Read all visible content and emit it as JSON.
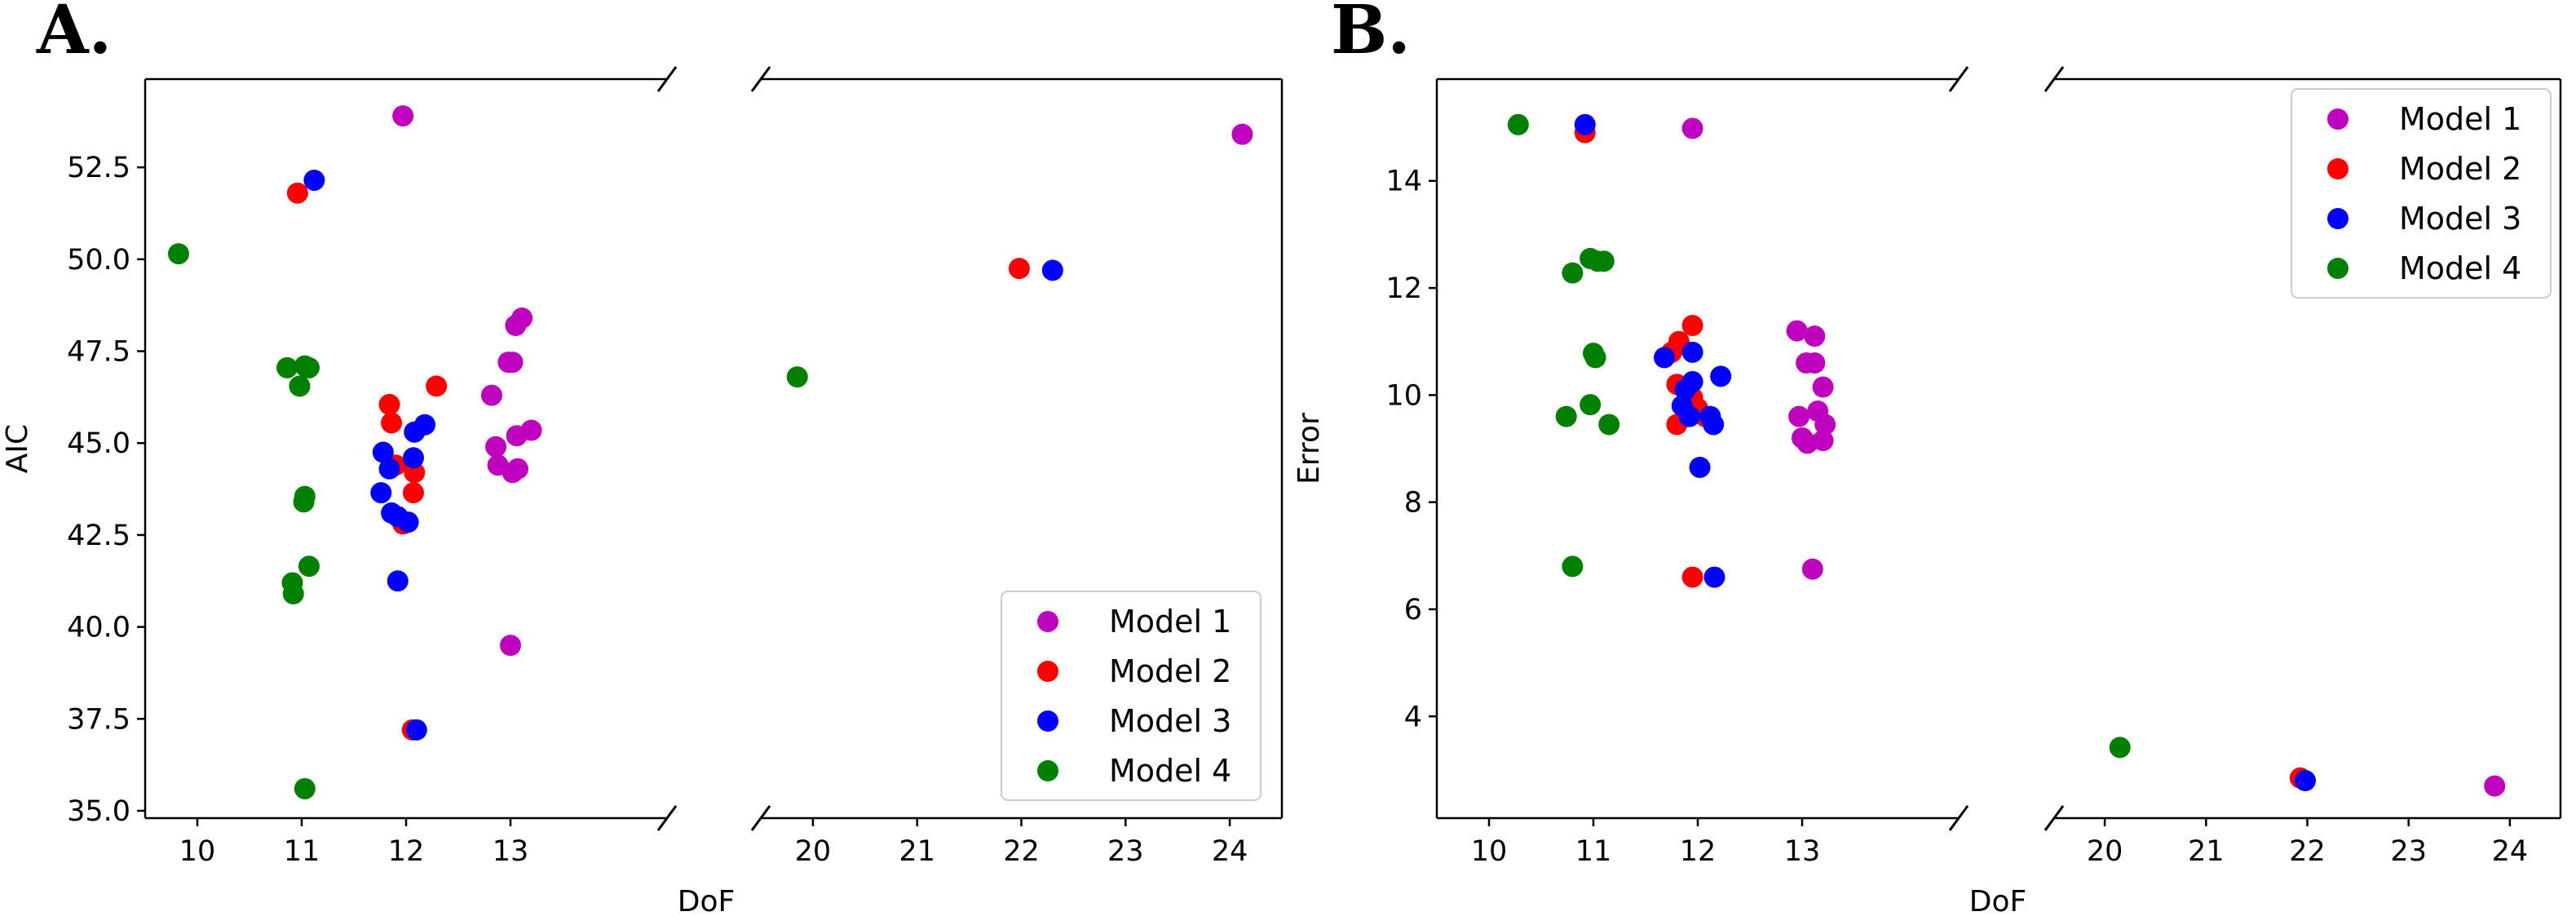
{
  "chart_data": [
    {
      "type": "scatter",
      "panel_label": "A.",
      "xlabel": "DoF",
      "ylabel": "AIC",
      "broken_x_axis": true,
      "x_segments": [
        [
          9.5,
          14.5
        ],
        [
          19.5,
          24.5
        ]
      ],
      "ylim": [
        34.8,
        54.9
      ],
      "xticks_left": [
        10,
        11,
        12,
        13
      ],
      "xticks_right": [
        20,
        21,
        22,
        23,
        24
      ],
      "yticks": [
        35.0,
        37.5,
        40.0,
        42.5,
        45.0,
        47.5,
        50.0,
        52.5
      ],
      "ytick_labels": [
        "35.0",
        "37.5",
        "40.0",
        "42.5",
        "45.0",
        "47.5",
        "50.0",
        "52.5"
      ],
      "legend_position": "bottom-right",
      "series": [
        {
          "name": "Model 1",
          "color": "#bf00bf",
          "points": [
            [
              11.97,
              53.9
            ],
            [
              12.82,
              46.3
            ],
            [
              12.86,
              44.9
            ],
            [
              12.88,
              44.4
            ],
            [
              12.98,
              47.2
            ],
            [
              13.02,
              47.2
            ],
            [
              13.05,
              48.2
            ],
            [
              13.11,
              48.4
            ],
            [
              13.06,
              45.2
            ],
            [
              13.2,
              45.35
            ],
            [
              13.0,
              39.5
            ],
            [
              13.02,
              44.2
            ],
            [
              13.07,
              44.3
            ],
            [
              24.12,
              53.4
            ]
          ]
        },
        {
          "name": "Model 2",
          "color": "#ff0000",
          "points": [
            [
              10.96,
              51.8
            ],
            [
              11.84,
              46.05
            ],
            [
              11.86,
              45.55
            ],
            [
              12.29,
              46.55
            ],
            [
              12.08,
              44.2
            ],
            [
              12.07,
              43.65
            ],
            [
              11.97,
              42.8
            ],
            [
              11.9,
              44.4
            ],
            [
              12.06,
              37.2
            ],
            [
              21.98,
              49.75
            ]
          ]
        },
        {
          "name": "Model 3",
          "color": "#0000ff",
          "points": [
            [
              11.12,
              52.15
            ],
            [
              11.78,
              44.75
            ],
            [
              11.84,
              44.3
            ],
            [
              11.76,
              43.65
            ],
            [
              11.86,
              43.1
            ],
            [
              11.92,
              43.0
            ],
            [
              12.02,
              42.85
            ],
            [
              12.08,
              45.3
            ],
            [
              12.18,
              45.5
            ],
            [
              12.07,
              44.6
            ],
            [
              11.92,
              41.25
            ],
            [
              12.1,
              37.2
            ],
            [
              22.3,
              49.7
            ]
          ]
        },
        {
          "name": "Model 4",
          "color": "#008000",
          "points": [
            [
              9.82,
              50.15
            ],
            [
              10.86,
              47.05
            ],
            [
              11.03,
              47.1
            ],
            [
              11.07,
              47.05
            ],
            [
              10.98,
              46.55
            ],
            [
              11.03,
              43.55
            ],
            [
              11.02,
              43.4
            ],
            [
              11.07,
              41.65
            ],
            [
              10.91,
              41.2
            ],
            [
              10.92,
              40.9
            ],
            [
              11.03,
              35.6
            ],
            [
              19.85,
              46.8
            ]
          ]
        }
      ]
    },
    {
      "type": "scatter",
      "panel_label": "B.",
      "xlabel": "DoF",
      "ylabel": "Error",
      "broken_x_axis": true,
      "x_segments": [
        [
          9.5,
          14.5
        ],
        [
          19.5,
          24.5
        ]
      ],
      "ylim": [
        2.1,
        15.9
      ],
      "xticks_left": [
        10,
        11,
        12,
        13
      ],
      "xticks_right": [
        20,
        21,
        22,
        23,
        24
      ],
      "yticks": [
        4,
        6,
        8,
        10,
        12,
        14
      ],
      "ytick_labels": [
        "4",
        "6",
        "8",
        "10",
        "12",
        "14"
      ],
      "legend_position": "top-right",
      "series": [
        {
          "name": "Model 1",
          "color": "#bf00bf",
          "points": [
            [
              11.95,
              14.98
            ],
            [
              12.95,
              11.2
            ],
            [
              13.12,
              11.1
            ],
            [
              13.04,
              10.6
            ],
            [
              13.12,
              10.6
            ],
            [
              13.2,
              10.15
            ],
            [
              13.15,
              9.7
            ],
            [
              12.97,
              9.6
            ],
            [
              13.22,
              9.45
            ],
            [
              13.0,
              9.2
            ],
            [
              13.05,
              9.1
            ],
            [
              13.2,
              9.15
            ],
            [
              13.1,
              6.75
            ],
            [
              23.85,
              2.7
            ]
          ]
        },
        {
          "name": "Model 2",
          "color": "#ff0000",
          "points": [
            [
              10.92,
              14.9
            ],
            [
              11.95,
              11.3
            ],
            [
              11.82,
              11.0
            ],
            [
              11.75,
              10.8
            ],
            [
              11.8,
              10.2
            ],
            [
              11.9,
              10.1
            ],
            [
              11.95,
              9.95
            ],
            [
              12.0,
              9.75
            ],
            [
              12.07,
              9.6
            ],
            [
              11.8,
              9.45
            ],
            [
              11.95,
              6.6
            ],
            [
              21.93,
              2.85
            ]
          ]
        },
        {
          "name": "Model 3",
          "color": "#0000ff",
          "points": [
            [
              10.92,
              15.05
            ],
            [
              11.68,
              10.7
            ],
            [
              11.95,
              10.8
            ],
            [
              11.95,
              10.25
            ],
            [
              11.88,
              10.1
            ],
            [
              11.85,
              9.8
            ],
            [
              11.92,
              9.6
            ],
            [
              12.12,
              9.6
            ],
            [
              12.15,
              9.45
            ],
            [
              12.22,
              10.35
            ],
            [
              12.02,
              8.65
            ],
            [
              12.16,
              6.6
            ],
            [
              21.98,
              2.8
            ]
          ]
        },
        {
          "name": "Model 4",
          "color": "#008000",
          "points": [
            [
              10.28,
              15.05
            ],
            [
              10.97,
              12.55
            ],
            [
              11.04,
              12.5
            ],
            [
              11.1,
              12.5
            ],
            [
              10.8,
              12.28
            ],
            [
              11.0,
              10.78
            ],
            [
              11.02,
              10.7
            ],
            [
              10.74,
              9.6
            ],
            [
              10.97,
              9.82
            ],
            [
              11.15,
              9.45
            ],
            [
              10.8,
              6.8
            ],
            [
              20.15,
              3.42
            ]
          ]
        }
      ]
    }
  ]
}
